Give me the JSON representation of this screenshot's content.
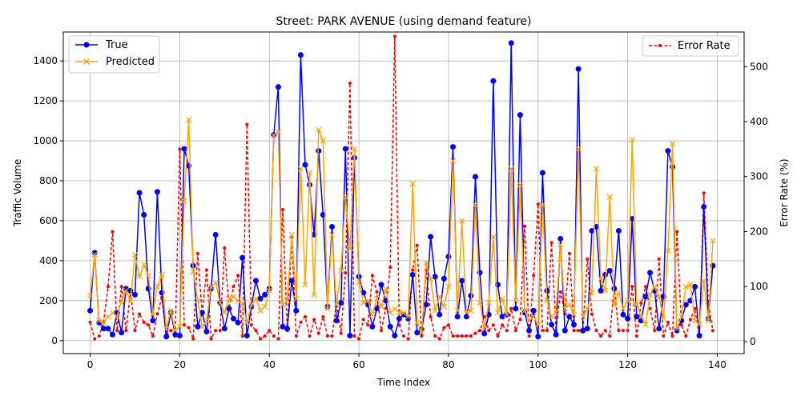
{
  "chart_data": {
    "type": "line",
    "title": "Street: PARK AVENUE (using demand feature)",
    "xlabel": "Time Index",
    "ylabel_left": "Traffic Volume",
    "ylabel_right": "Error Rate (%)",
    "xlim": [
      -6,
      146
    ],
    "ylim_left": [
      -65,
      1545
    ],
    "ylim_right": [
      -22,
      563
    ],
    "xticks": [
      0,
      20,
      40,
      60,
      80,
      100,
      120,
      140
    ],
    "yticks_left": [
      0,
      200,
      400,
      600,
      800,
      1000,
      1200,
      1400
    ],
    "yticks_right": [
      0,
      100,
      200,
      300,
      400,
      500
    ],
    "grid": true,
    "legend_left": "upper-left",
    "legend_right": "upper-right",
    "series": [
      {
        "name": "True",
        "axis": "left",
        "color": "#0000ff",
        "marker": "circle",
        "style": "solid",
        "values": [
          150,
          440,
          90,
          60,
          60,
          30,
          140,
          40,
          260,
          250,
          230,
          740,
          630,
          260,
          100,
          745,
          240,
          20,
          140,
          30,
          25,
          960,
          875,
          375,
          70,
          140,
          45,
          260,
          530,
          190,
          60,
          160,
          110,
          90,
          415,
          25,
          170,
          300,
          210,
          230,
          260,
          1030,
          1270,
          70,
          60,
          300,
          150,
          1430,
          880,
          780,
          530,
          950,
          630,
          170,
          570,
          100,
          190,
          960,
          25,
          915,
          320,
          240,
          180,
          70,
          160,
          280,
          200,
          70,
          25,
          110,
          130,
          110,
          330,
          40,
          55,
          180,
          520,
          320,
          130,
          310,
          420,
          970,
          120,
          300,
          120,
          225,
          820,
          340,
          35,
          130,
          1300,
          280,
          120,
          130,
          1490,
          160,
          1130,
          140,
          50,
          150,
          20,
          840,
          250,
          80,
          30,
          510,
          50,
          120,
          80,
          1360,
          50,
          60,
          550,
          570,
          250,
          330,
          350,
          260,
          550,
          130,
          110,
          610,
          120,
          100,
          220,
          340,
          250,
          60,
          220,
          950,
          870,
          50,
          100,
          180,
          200,
          270,
          25,
          670,
          110,
          375
        ]
      },
      {
        "name": "Predicted",
        "axis": "left",
        "color": "#ffa500",
        "marker": "x",
        "style": "solid",
        "values": [
          225,
          430,
          100,
          90,
          120,
          140,
          120,
          200,
          250,
          200,
          430,
          320,
          380,
          325,
          130,
          270,
          330,
          60,
          150,
          50,
          70,
          700,
          1105,
          345,
          200,
          70,
          100,
          270,
          290,
          190,
          140,
          210,
          220,
          200,
          185,
          90,
          180,
          210,
          150,
          170,
          250,
          1030,
          1045,
          180,
          200,
          530,
          210,
          860,
          280,
          840,
          230,
          1055,
          1000,
          160,
          530,
          180,
          350,
          720,
          460,
          960,
          290,
          190,
          200,
          130,
          210,
          170,
          260,
          140,
          160,
          140,
          140,
          120,
          785,
          90,
          40,
          390,
          310,
          150,
          220,
          170,
          270,
          900,
          150,
          600,
          140,
          150,
          680,
          190,
          60,
          190,
          520,
          140,
          210,
          130,
          860,
          200,
          780,
          150,
          100,
          120,
          80,
          680,
          200,
          120,
          140,
          480,
          160,
          180,
          130,
          960,
          120,
          160,
          240,
          860,
          310,
          250,
          720,
          180,
          240,
          160,
          200,
          1005,
          180,
          120,
          80,
          230,
          270,
          220,
          110,
          450,
          985,
          60,
          120,
          270,
          280,
          100,
          80,
          300,
          100,
          500
        ]
      },
      {
        "name": "Error Rate",
        "axis": "right",
        "color": "#ff0000",
        "marker": "dot",
        "style": "dashed",
        "values": [
          35,
          5,
          10,
          35,
          100,
          200,
          20,
          100,
          20,
          90,
          20,
          50,
          35,
          30,
          10,
          50,
          80,
          10,
          20,
          10,
          350,
          30,
          25,
          5,
          160,
          50,
          130,
          5,
          20,
          20,
          170,
          60,
          100,
          120,
          10,
          395,
          30,
          20,
          5,
          10,
          20,
          10,
          5,
          240,
          20,
          190,
          10,
          35,
          45,
          10,
          40,
          15,
          45,
          10,
          10,
          70,
          15,
          125,
          470,
          10,
          5,
          40,
          30,
          120,
          90,
          20,
          60,
          135,
          555,
          30,
          10,
          5,
          130,
          175,
          10,
          130,
          45,
          10,
          5,
          25,
          30,
          10,
          10,
          10,
          10,
          10,
          15,
          20,
          45,
          20,
          30,
          10,
          30,
          20,
          60,
          20,
          40,
          210,
          10,
          120,
          250,
          20,
          20,
          180,
          20,
          90,
          50,
          160,
          20,
          20,
          20,
          150,
          50,
          20,
          10,
          20,
          10,
          100,
          20,
          20,
          20,
          100,
          10,
          70,
          100,
          60,
          20,
          150,
          10,
          35,
          10,
          200,
          30,
          10,
          40,
          60,
          10,
          270,
          70,
          20
        ]
      }
    ]
  }
}
